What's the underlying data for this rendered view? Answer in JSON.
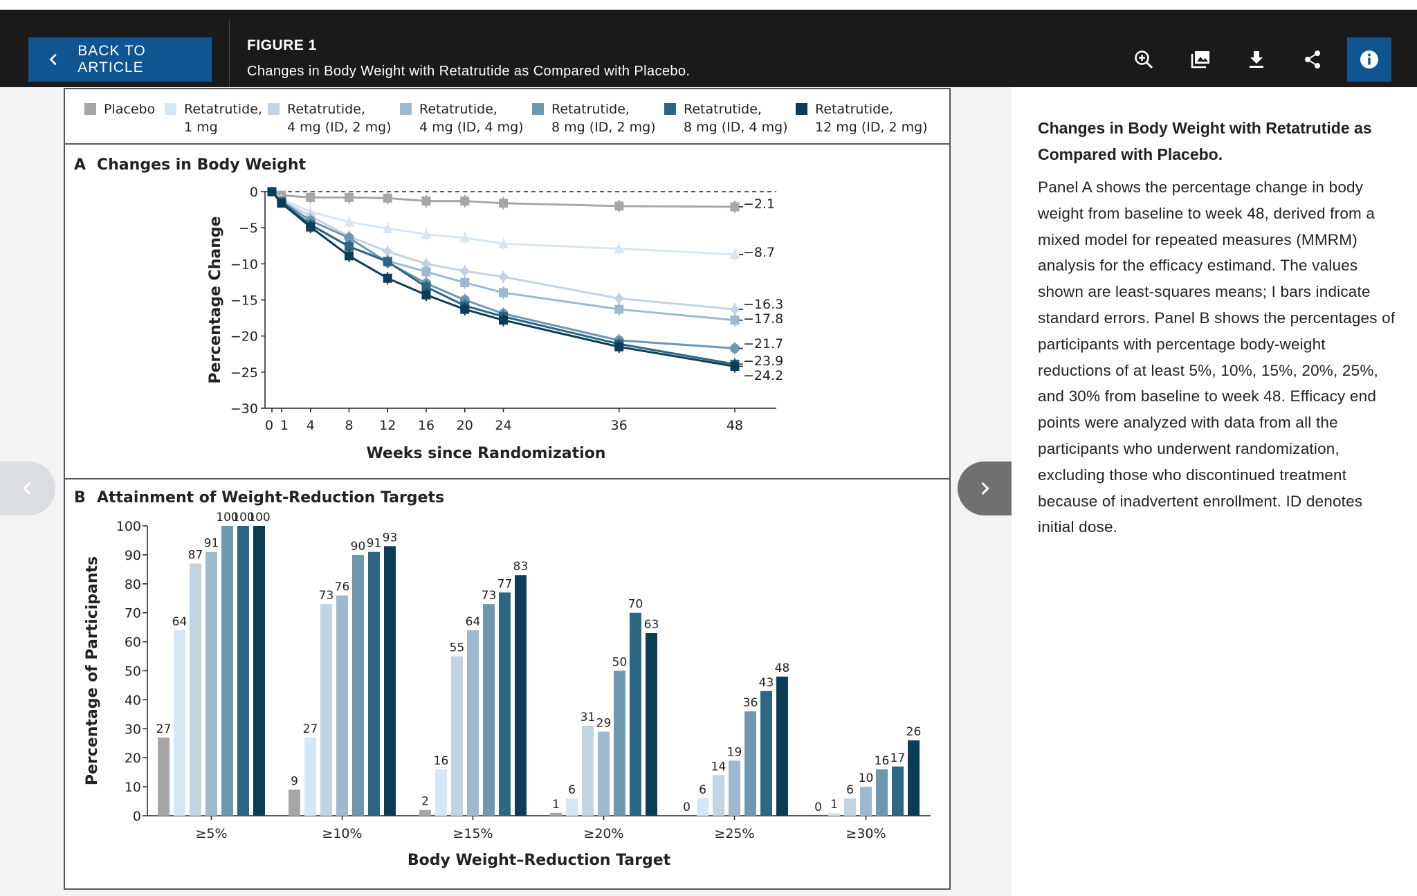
{
  "toolbar": {
    "back_label": "BACK TO ARTICLE",
    "figure_label": "FIGURE 1",
    "figure_subtitle": "Changes in Body Weight with Retatrutide as Compared with Placebo.",
    "icons": [
      "zoom-in-icon",
      "image-gallery-icon",
      "download-icon",
      "share-icon",
      "info-icon"
    ],
    "accent": "#0f5592",
    "bar_bg": "#1a1a1a"
  },
  "caption": {
    "title": "Changes in Body Weight with Retatrutide as Compared with Placebo.",
    "body": "Panel A shows the percentage change in body weight from baseline to week 48, derived from a mixed model for repeated measures (MMRM) analysis for the efficacy estimand. The values shown are least-squares means; I bars indicate standard errors. Panel B shows the percentages of participants with percentage body-weight reductions of at least 5%, 10%, 15%, 20%, 25%, and 30% from baseline to week 48. Efficacy end points were analyzed with data from all the participants who underwent randomization, excluding those who discontinued treatment because of inadvertent enrollment. ID denotes initial dose."
  },
  "legend": [
    {
      "line1": "Placebo",
      "line2": "",
      "color": "#a6a6a6",
      "marker": "square"
    },
    {
      "line1": "Retatrutide,",
      "line2": "1 mg",
      "color": "#d5e6f4",
      "marker": "triangle"
    },
    {
      "line1": "Retatrutide,",
      "line2": "4 mg (ID, 2 mg)",
      "color": "#c2d3e2",
      "marker": "diamond"
    },
    {
      "line1": "Retatrutide,",
      "line2": "4 mg (ID, 4 mg)",
      "color": "#9db9cf",
      "marker": "square"
    },
    {
      "line1": "Retatrutide,",
      "line2": "8 mg (ID, 2 mg)",
      "color": "#6f97b0",
      "marker": "circle"
    },
    {
      "line1": "Retatrutide,",
      "line2": "8 mg (ID, 4 mg)",
      "color": "#2d6682",
      "marker": "square"
    },
    {
      "line1": "Retatrutide,",
      "line2": "12 mg (ID, 2 mg)",
      "color": "#0c3c56",
      "marker": "square"
    }
  ],
  "chart_data": [
    {
      "type": "line",
      "panel": "A",
      "title": "Changes in Body Weight",
      "xlabel": "Weeks since Randomization",
      "ylabel": "Percentage Change",
      "x_ticks": [
        0,
        1,
        4,
        8,
        12,
        16,
        20,
        24,
        36,
        48
      ],
      "x_tick_labels": [
        "0",
        "1",
        "4",
        "8",
        "12",
        "16",
        "20",
        "24",
        "36",
        "48"
      ],
      "y_ticks": [
        0,
        -5,
        -10,
        -15,
        -20,
        -25,
        -30
      ],
      "ylim": [
        -30,
        0
      ],
      "xlim": [
        0,
        48
      ],
      "x": [
        0,
        1,
        4,
        8,
        12,
        16,
        20,
        24,
        36,
        48
      ],
      "series": [
        {
          "name": "Placebo",
          "values": [
            0,
            -0.5,
            -0.8,
            -0.8,
            -0.9,
            -1.3,
            -1.3,
            -1.6,
            -2.0,
            -2.1
          ],
          "end_label": "−2.1"
        },
        {
          "name": "Retatrutide, 1 mg",
          "values": [
            0,
            -1.0,
            -2.8,
            -4.2,
            -5.1,
            -5.9,
            -6.4,
            -7.2,
            -7.9,
            -8.7
          ],
          "end_label": "−8.7"
        },
        {
          "name": "Retatrutide, 4 mg (ID, 2 mg)",
          "values": [
            0,
            -1.2,
            -3.4,
            -6.2,
            -8.3,
            -10.0,
            -11.0,
            -11.8,
            -14.8,
            -16.3
          ],
          "end_label": "−16.3"
        },
        {
          "name": "Retatrutide, 4 mg (ID, 4 mg)",
          "values": [
            0,
            -1.5,
            -4.5,
            -7.6,
            -9.6,
            -11.1,
            -12.6,
            -14.0,
            -16.3,
            -17.8
          ],
          "end_label": "−17.8"
        },
        {
          "name": "Retatrutide, 8 mg (ID, 2 mg)",
          "values": [
            0,
            -1.3,
            -4.0,
            -6.4,
            -9.8,
            -12.7,
            -15.0,
            -16.9,
            -20.6,
            -21.7
          ],
          "end_label": "−21.7"
        },
        {
          "name": "Retatrutide, 8 mg (ID, 4 mg)",
          "values": [
            0,
            -1.4,
            -4.6,
            -7.6,
            -9.7,
            -13.2,
            -15.8,
            -17.3,
            -21.1,
            -23.9
          ],
          "end_label": "−23.9"
        },
        {
          "name": "Retatrutide, 12 mg (ID, 2 mg)",
          "values": [
            0,
            -1.6,
            -4.9,
            -8.9,
            -12.0,
            -14.3,
            -16.3,
            -17.8,
            -21.5,
            -24.2
          ],
          "end_label": "−24.2"
        }
      ],
      "reference_line": 0
    },
    {
      "type": "bar",
      "panel": "B",
      "title": "Attainment of Weight-Reduction Targets",
      "xlabel": "Body  Weight–Reduction  Target",
      "ylabel": "Percentage of Participants",
      "categories": [
        "≥5%",
        "≥10%",
        "≥15%",
        "≥20%",
        "≥25%",
        "≥30%"
      ],
      "y_ticks": [
        0,
        10,
        20,
        30,
        40,
        50,
        60,
        70,
        80,
        90,
        100
      ],
      "ylim": [
        0,
        100
      ],
      "series": [
        {
          "name": "Placebo",
          "values": [
            27,
            9,
            2,
            1,
            0,
            0
          ]
        },
        {
          "name": "Retatrutide, 1 mg",
          "values": [
            64,
            27,
            16,
            6,
            6,
            1
          ]
        },
        {
          "name": "Retatrutide, 4 mg (ID, 2 mg)",
          "values": [
            87,
            73,
            55,
            31,
            14,
            6
          ]
        },
        {
          "name": "Retatrutide, 4 mg (ID, 4 mg)",
          "values": [
            91,
            76,
            64,
            29,
            19,
            10
          ]
        },
        {
          "name": "Retatrutide, 8 mg (ID, 2 mg)",
          "values": [
            100,
            90,
            73,
            50,
            36,
            16
          ]
        },
        {
          "name": "Retatrutide, 8 mg (ID, 4 mg)",
          "values": [
            100,
            91,
            77,
            70,
            43,
            17
          ]
        },
        {
          "name": "Retatrutide, 12 mg (ID, 2 mg)",
          "values": [
            100,
            93,
            83,
            63,
            48,
            26
          ]
        }
      ]
    }
  ]
}
